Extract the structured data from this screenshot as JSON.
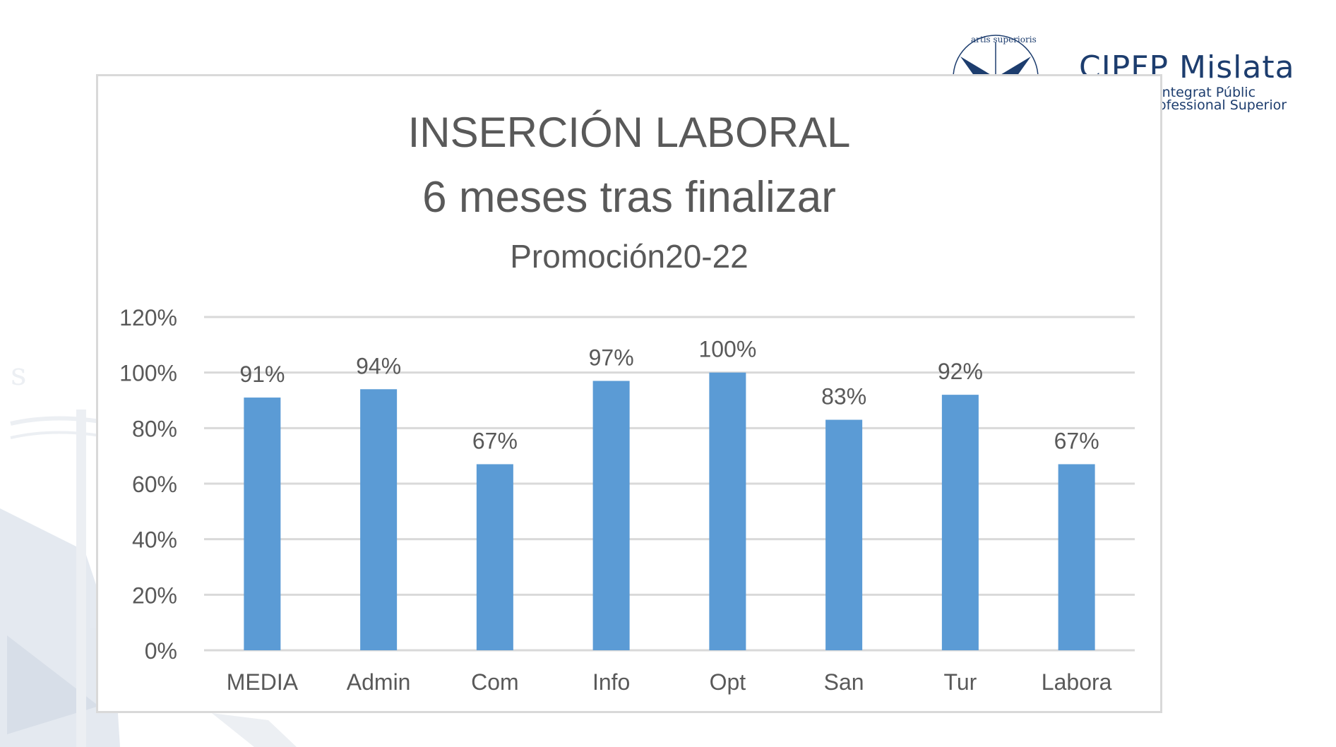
{
  "logo": {
    "motto_text": "artis superioris",
    "name": "CIPFP Mislata",
    "subtitle_line1": "Integrat Públic",
    "subtitle_line2": "ofessional Superior"
  },
  "colors": {
    "bar": "#5b9bd5",
    "grid": "#d9d9d9",
    "text": "#595959",
    "logo_navy": "#1d3d6e"
  },
  "chart_data": {
    "type": "bar",
    "title": "INSERCIÓN LABORAL",
    "subtitle": "6 meses tras finalizar",
    "subtitle2": "Promoción20-22",
    "categories": [
      "MEDIA",
      "Admin",
      "Com",
      "Info",
      "Opt",
      "San",
      "Tur",
      "Labora"
    ],
    "values": [
      91,
      94,
      67,
      97,
      100,
      83,
      92,
      67
    ],
    "data_labels": [
      "91%",
      "94%",
      "67%",
      "97%",
      "100%",
      "83%",
      "92%",
      "67%"
    ],
    "ylim": [
      0,
      120
    ],
    "yticks": [
      "0%",
      "20%",
      "40%",
      "60%",
      "80%",
      "100%",
      "120%"
    ],
    "grid": true,
    "legend": "none"
  }
}
